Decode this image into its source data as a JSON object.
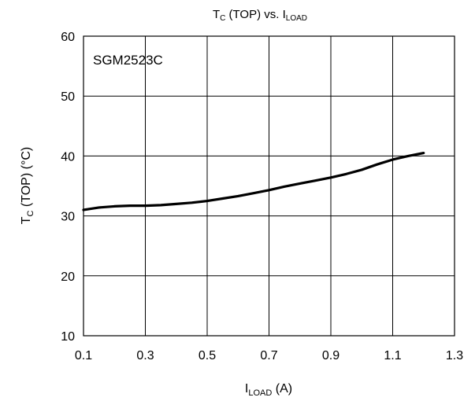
{
  "chart_data": {
    "type": "line",
    "title": {
      "main": "T",
      "main_sub": "C",
      "rest": " (TOP) vs. I",
      "rest_sub": "LOAD"
    },
    "xlabel": {
      "main": "I",
      "sub": "LOAD",
      "rest": " (A)"
    },
    "ylabel": {
      "main": "T",
      "sub": "C",
      "rest": " (TOP) (°C)"
    },
    "xlim": [
      0.1,
      1.3
    ],
    "ylim": [
      10,
      60
    ],
    "xticks": [
      0.1,
      0.3,
      0.5,
      0.7,
      0.9,
      1.1,
      1.3
    ],
    "xtick_labels": [
      "0.1",
      "0.3",
      "0.5",
      "0.7",
      "0.9",
      "1.1",
      "1.3"
    ],
    "yticks": [
      10,
      20,
      30,
      40,
      50,
      60
    ],
    "ytick_labels": [
      "10",
      "20",
      "30",
      "40",
      "50",
      "60"
    ],
    "grid": true,
    "annotation": "SGM2523C",
    "series": [
      {
        "color": "#000000",
        "x": [
          0.1,
          0.15,
          0.2,
          0.25,
          0.3,
          0.35,
          0.4,
          0.45,
          0.5,
          0.55,
          0.6,
          0.65,
          0.7,
          0.75,
          0.8,
          0.85,
          0.9,
          0.95,
          1.0,
          1.05,
          1.1,
          1.15,
          1.2
        ],
        "values": [
          31.0,
          31.4,
          31.6,
          31.7,
          31.7,
          31.8,
          32.0,
          32.2,
          32.5,
          32.9,
          33.3,
          33.8,
          34.3,
          34.9,
          35.4,
          35.9,
          36.4,
          37.0,
          37.7,
          38.6,
          39.4,
          40.0,
          40.5
        ]
      }
    ]
  }
}
